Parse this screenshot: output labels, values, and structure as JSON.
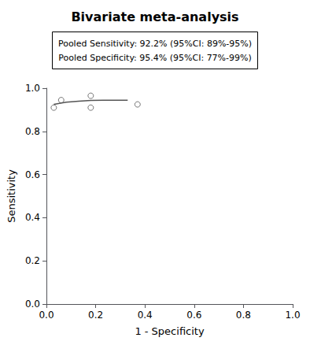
{
  "chart_data": {
    "type": "line",
    "title": "Bivariate meta-analysis",
    "annotations": [
      "Pooled Sensitivity: 92.2% (95%CI: 89%-95%)",
      "Pooled Specificity: 95.4% (95%CI: 77%-99%)"
    ],
    "xlabel": "1 - Specificity",
    "ylabel": "Sensitivity",
    "xlim": [
      0.0,
      1.0
    ],
    "ylim": [
      0.0,
      1.0
    ],
    "xticks": [
      {
        "value": 0,
        "label": "0.0"
      },
      0.2,
      0.4,
      0.6,
      0.8,
      {
        "value": 1,
        "label": "1.0"
      }
    ],
    "yticks": [
      {
        "value": 0,
        "label": "0.0"
      },
      0.2,
      0.4,
      0.6,
      0.8,
      {
        "value": 1,
        "label": "1.0"
      }
    ],
    "grid": false,
    "series": [
      {
        "type": "line",
        "color": "#555555",
        "x": [
          0.03,
          0.08,
          0.13,
          0.18,
          0.23,
          0.28,
          0.33
        ],
        "values": [
          0.925,
          0.935,
          0.94,
          0.943,
          0.944,
          0.944,
          0.944
        ]
      },
      {
        "type": "scatter",
        "color": "#555555",
        "marker": "open-circle",
        "x": [
          0.03,
          0.06,
          0.18,
          0.18,
          0.37
        ],
        "values": [
          0.91,
          0.945,
          0.965,
          0.91,
          0.925
        ]
      }
    ]
  }
}
